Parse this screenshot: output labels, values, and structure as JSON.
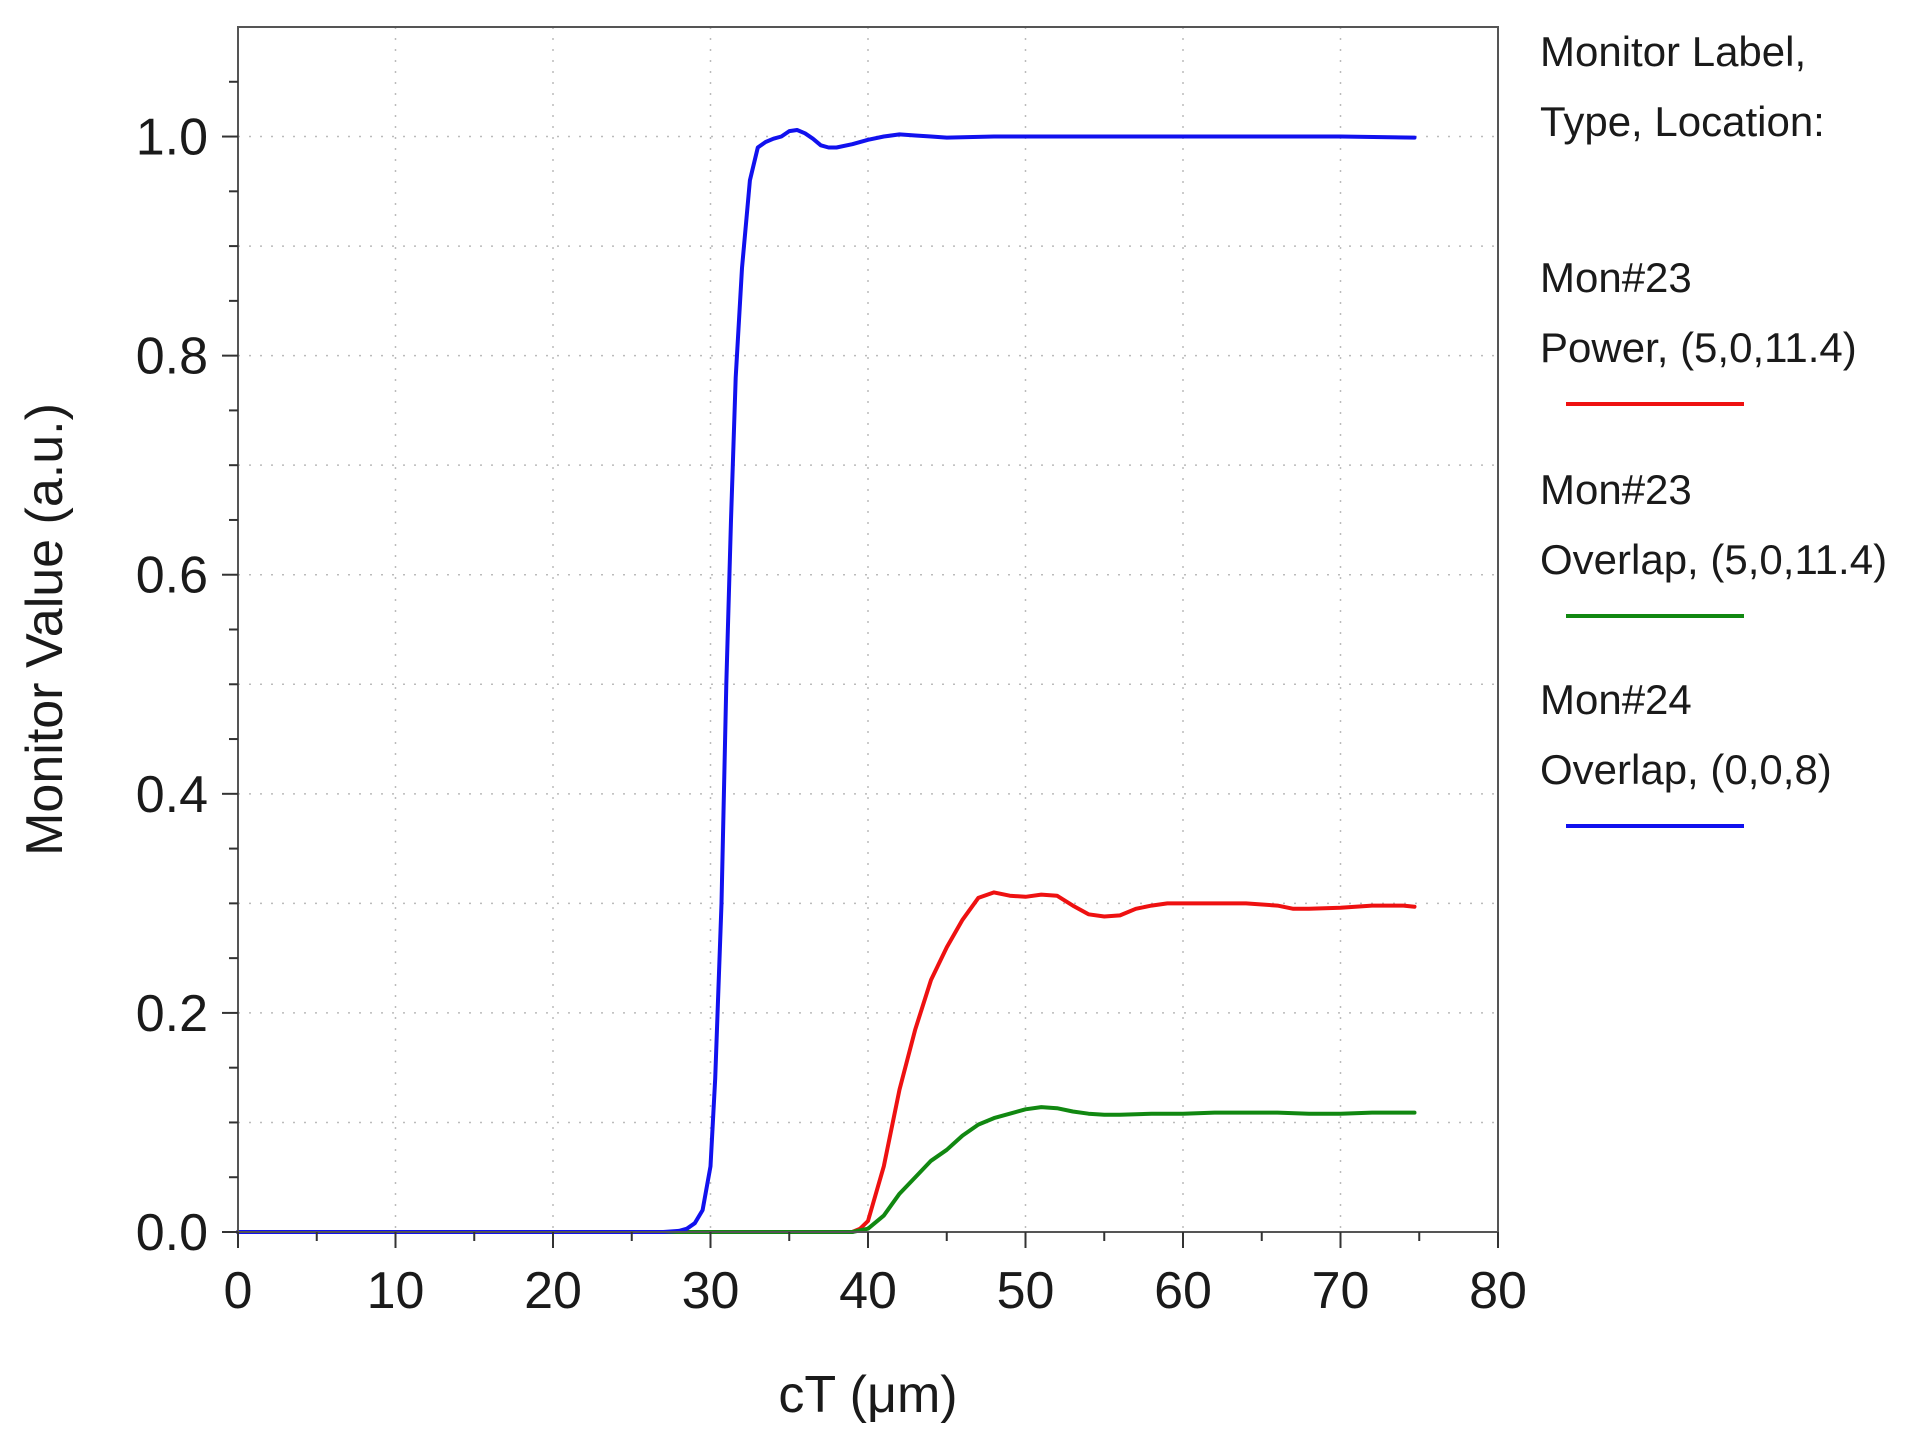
{
  "chart_data": {
    "type": "line",
    "title": "",
    "xlabel": "cT (μm)",
    "ylabel": "Monitor Value (a.u.)",
    "xlim": [
      0,
      80
    ],
    "ylim": [
      0,
      1.1
    ],
    "xticks": [
      0,
      10,
      20,
      30,
      40,
      50,
      60,
      70,
      80
    ],
    "yticks": [
      0.0,
      0.2,
      0.4,
      0.6,
      0.8,
      1.0
    ],
    "xtick_labels": [
      "0",
      "10",
      "20",
      "30",
      "40",
      "50",
      "60",
      "70",
      "80"
    ],
    "ytick_labels": [
      "0.0",
      "0.2",
      "0.4",
      "0.6",
      "0.8",
      "1.0"
    ],
    "grid": true,
    "legend_position": "right",
    "legend_header": [
      "Monitor Label,",
      "Type, Location:"
    ],
    "series": [
      {
        "name": "Mon#23",
        "name_line2": "Power, (5,0,11.4)",
        "color": "#ee1111",
        "x": [
          0,
          10,
          20,
          30,
          39,
          39.5,
          40,
          41,
          42,
          43,
          44,
          45,
          46,
          47,
          48,
          49,
          50,
          51,
          52,
          53,
          54,
          55,
          56,
          57,
          58,
          59,
          60,
          62,
          64,
          66,
          67,
          68,
          70,
          72,
          74,
          74.7
        ],
        "y": [
          0,
          0,
          0,
          0,
          0,
          0.003,
          0.01,
          0.06,
          0.13,
          0.185,
          0.23,
          0.26,
          0.285,
          0.305,
          0.31,
          0.307,
          0.306,
          0.308,
          0.307,
          0.298,
          0.29,
          0.288,
          0.289,
          0.295,
          0.298,
          0.3,
          0.3,
          0.3,
          0.3,
          0.298,
          0.295,
          0.295,
          0.296,
          0.298,
          0.298,
          0.297
        ]
      },
      {
        "name": "Mon#23",
        "name_line2": "Overlap, (5,0,11.4)",
        "color": "#118811",
        "x": [
          0,
          10,
          20,
          30,
          39,
          40,
          41,
          42,
          43,
          44,
          45,
          46,
          47,
          48,
          49,
          50,
          51,
          52,
          53,
          54,
          55,
          56,
          58,
          60,
          62,
          64,
          66,
          68,
          70,
          72,
          74,
          74.7
        ],
        "y": [
          0,
          0,
          0,
          0,
          0,
          0.003,
          0.015,
          0.035,
          0.05,
          0.065,
          0.075,
          0.088,
          0.098,
          0.104,
          0.108,
          0.112,
          0.114,
          0.113,
          0.11,
          0.108,
          0.107,
          0.107,
          0.108,
          0.108,
          0.109,
          0.109,
          0.109,
          0.108,
          0.108,
          0.109,
          0.109,
          0.109
        ]
      },
      {
        "name": "Mon#24",
        "name_line2": "Overlap, (0,0,8)",
        "color": "#1111ee",
        "x": [
          0,
          10,
          20,
          27,
          28,
          28.5,
          29,
          29.5,
          30,
          30.3,
          30.7,
          31,
          31.3,
          31.6,
          32,
          32.5,
          33,
          33.5,
          34,
          34.5,
          35,
          35.5,
          36,
          36.5,
          37,
          37.5,
          38,
          39,
          40,
          41,
          42,
          43,
          44,
          45,
          48,
          50,
          55,
          60,
          65,
          70,
          74.7
        ],
        "y": [
          0,
          0,
          0,
          0,
          0.001,
          0.003,
          0.008,
          0.02,
          0.06,
          0.14,
          0.3,
          0.5,
          0.65,
          0.78,
          0.88,
          0.96,
          0.99,
          0.995,
          0.998,
          1.0,
          1.005,
          1.006,
          1.003,
          0.998,
          0.992,
          0.99,
          0.99,
          0.993,
          0.997,
          1.0,
          1.002,
          1.001,
          1.0,
          0.999,
          1.0,
          1.0,
          1.0,
          1.0,
          1.0,
          1.0,
          0.999
        ]
      }
    ]
  }
}
